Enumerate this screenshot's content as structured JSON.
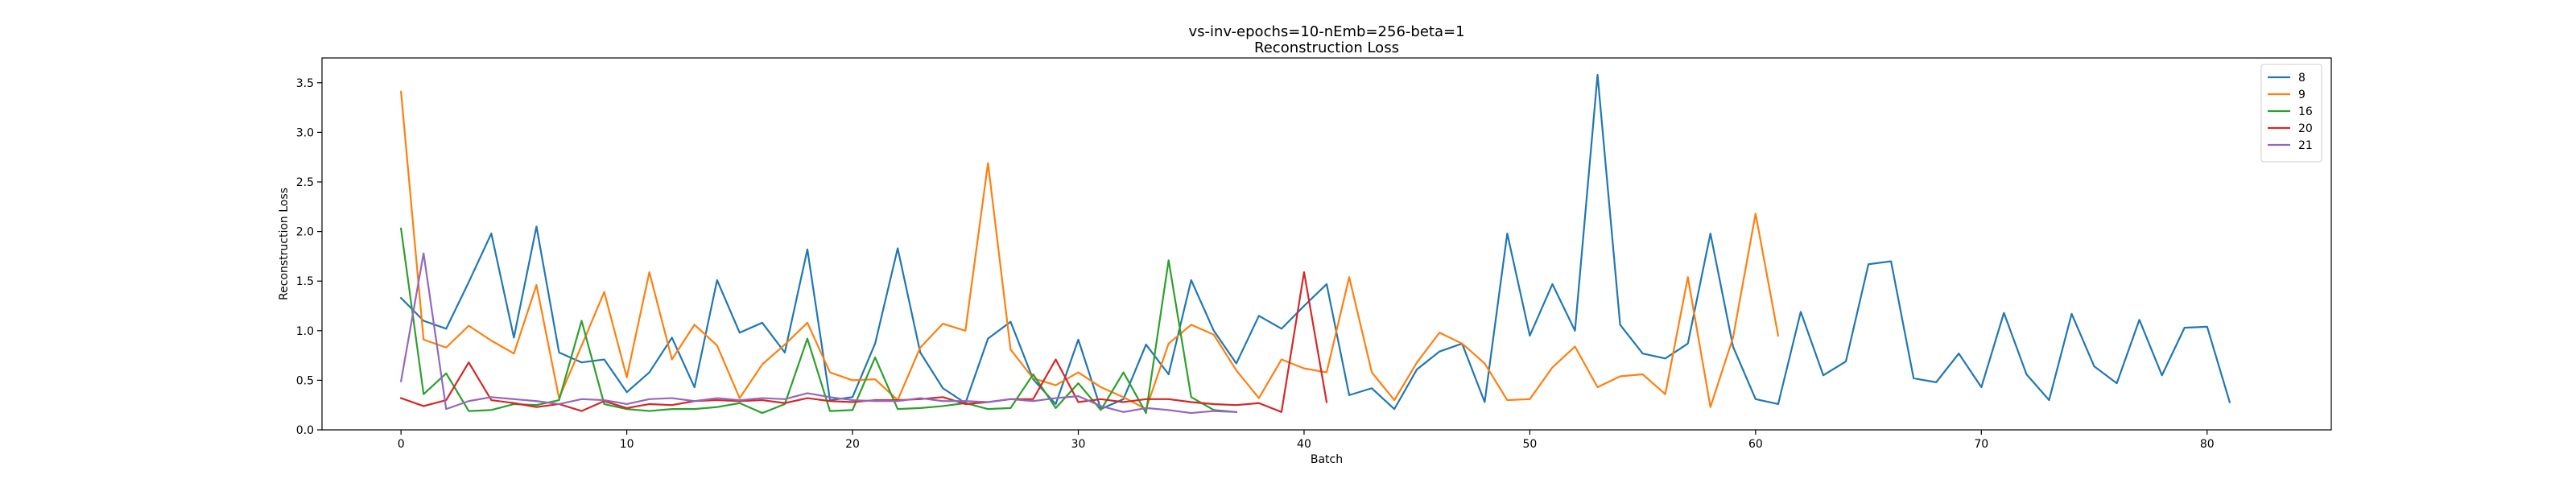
{
  "chart_data": {
    "type": "line",
    "title": "vs-inv-epochs=10-nEmb=256-beta=1",
    "subtitle": "Reconstruction Loss",
    "xlabel": "Batch",
    "ylabel": "Reconstruction Loss",
    "xlim": [
      -3.5,
      85.5
    ],
    "ylim": [
      0,
      3.75
    ],
    "xticks": [
      0,
      10,
      20,
      30,
      40,
      50,
      60,
      70,
      80
    ],
    "yticks": [
      0.0,
      0.5,
      1.0,
      1.5,
      2.0,
      2.5,
      3.0,
      3.5
    ],
    "xtick_labels": [
      "0",
      "10",
      "20",
      "30",
      "40",
      "50",
      "60",
      "70",
      "80"
    ],
    "ytick_labels": [
      "0.0",
      "0.5",
      "1.0",
      "1.5",
      "2.0",
      "2.5",
      "3.0",
      "3.5"
    ],
    "grid": false,
    "legend_position": "top-right",
    "series": [
      {
        "name": "8",
        "color": "#1f77b4",
        "values": [
          1.33,
          1.1,
          1.02,
          1.49,
          1.98,
          0.93,
          2.05,
          0.78,
          0.68,
          0.71,
          0.38,
          0.58,
          0.93,
          0.43,
          1.51,
          0.98,
          1.08,
          0.78,
          1.82,
          0.3,
          0.33,
          0.87,
          1.83,
          0.78,
          0.42,
          0.27,
          0.92,
          1.09,
          0.51,
          0.26,
          0.91,
          0.21,
          0.31,
          0.86,
          0.56,
          1.51,
          1.0,
          0.67,
          1.15,
          1.02,
          1.25,
          1.47,
          0.35,
          0.42,
          0.21,
          0.61,
          0.79,
          0.87,
          0.28,
          1.98,
          0.95,
          1.47,
          1.0,
          3.58,
          1.06,
          0.77,
          0.72,
          0.87,
          1.98,
          0.84,
          0.31,
          0.26,
          1.19,
          0.55,
          0.69,
          1.67,
          1.7,
          0.52,
          0.48,
          0.77,
          0.43,
          1.18,
          0.56,
          0.3,
          1.17,
          0.64,
          0.47,
          1.11,
          0.55,
          1.03,
          1.04,
          0.28
        ]
      },
      {
        "name": "9",
        "color": "#ff7f0e",
        "values": [
          3.41,
          0.91,
          0.83,
          1.05,
          0.9,
          0.77,
          1.46,
          0.32,
          0.85,
          1.39,
          0.53,
          1.59,
          0.71,
          1.06,
          0.85,
          0.32,
          0.66,
          0.86,
          1.08,
          0.58,
          0.5,
          0.51,
          0.3,
          0.83,
          1.07,
          1.0,
          2.69,
          0.81,
          0.52,
          0.45,
          0.58,
          0.43,
          0.33,
          0.21,
          0.87,
          1.06,
          0.96,
          0.6,
          0.32,
          0.71,
          0.62,
          0.58,
          1.54,
          0.58,
          0.3,
          0.68,
          0.98,
          0.87,
          0.67,
          0.3,
          0.31,
          0.63,
          0.84,
          0.43,
          0.54,
          0.56,
          0.36,
          1.54,
          0.23,
          0.93,
          2.18,
          0.95
        ]
      },
      {
        "name": "16",
        "color": "#2ca02c",
        "values": [
          2.03,
          0.36,
          0.57,
          0.19,
          0.2,
          0.26,
          0.25,
          0.3,
          1.1,
          0.26,
          0.21,
          0.19,
          0.21,
          0.21,
          0.23,
          0.27,
          0.17,
          0.26,
          0.92,
          0.19,
          0.2,
          0.73,
          0.21,
          0.22,
          0.24,
          0.27,
          0.21,
          0.22,
          0.56,
          0.22,
          0.47,
          0.2,
          0.58,
          0.17,
          1.71,
          0.33,
          0.2,
          0.18
        ]
      },
      {
        "name": "20",
        "color": "#d62728",
        "values": [
          0.32,
          0.24,
          0.3,
          0.68,
          0.3,
          0.27,
          0.23,
          0.26,
          0.19,
          0.29,
          0.22,
          0.26,
          0.25,
          0.29,
          0.3,
          0.29,
          0.3,
          0.27,
          0.32,
          0.29,
          0.28,
          0.3,
          0.3,
          0.31,
          0.33,
          0.26,
          0.28,
          0.31,
          0.31,
          0.71,
          0.28,
          0.31,
          0.28,
          0.31,
          0.31,
          0.28,
          0.26,
          0.25,
          0.27,
          0.18,
          1.59,
          0.28
        ]
      },
      {
        "name": "21",
        "color": "#9467bd",
        "values": [
          0.49,
          1.78,
          0.21,
          0.29,
          0.33,
          0.31,
          0.29,
          0.26,
          0.31,
          0.3,
          0.26,
          0.31,
          0.32,
          0.29,
          0.32,
          0.3,
          0.32,
          0.31,
          0.37,
          0.33,
          0.3,
          0.29,
          0.29,
          0.32,
          0.29,
          0.29,
          0.28,
          0.31,
          0.29,
          0.32,
          0.34,
          0.24,
          0.18,
          0.22,
          0.2,
          0.17,
          0.19,
          0.18
        ]
      }
    ]
  }
}
